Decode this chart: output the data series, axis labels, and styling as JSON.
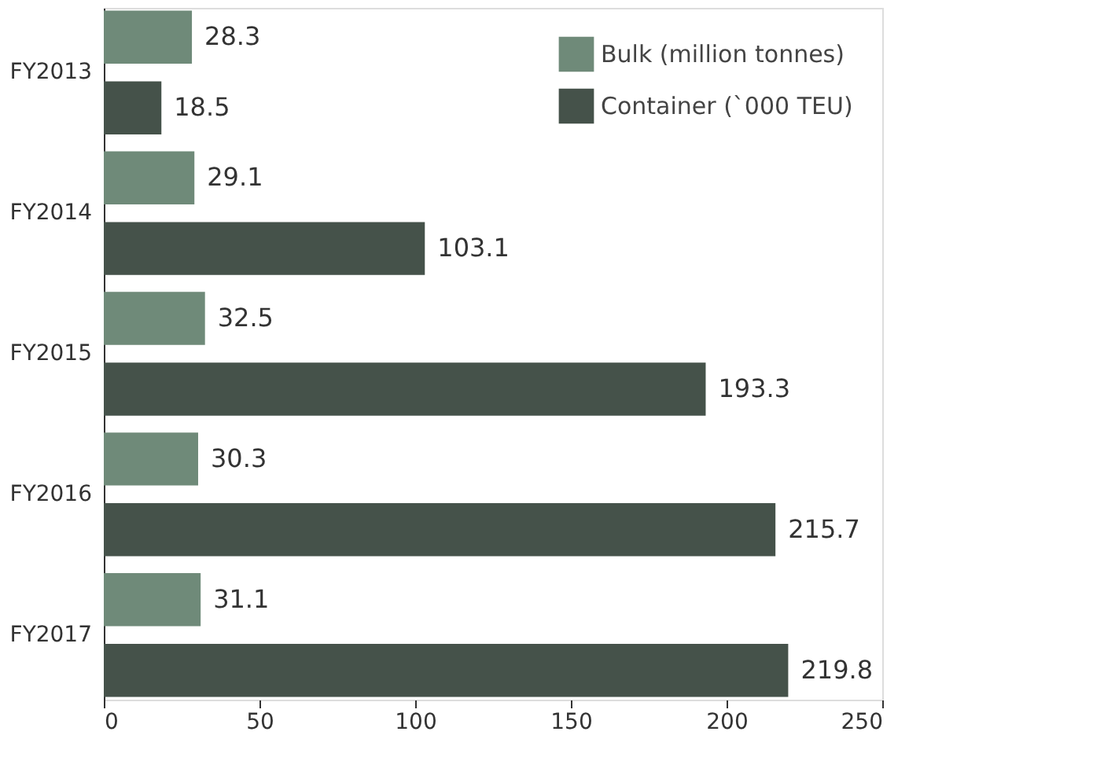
{
  "chart_data": {
    "type": "bar",
    "orientation": "horizontal",
    "categories": [
      "FY2013",
      "FY2014",
      "FY2015",
      "FY2016",
      "FY2017"
    ],
    "series": [
      {
        "name": "Bulk (million tonnes)",
        "color": "#6f8a79",
        "values": [
          28.3,
          29.1,
          32.5,
          30.3,
          31.1
        ]
      },
      {
        "name": "Container (`000 TEU)",
        "color": "#45524a",
        "values": [
          18.5,
          103.1,
          193.3,
          215.7,
          219.8
        ]
      }
    ],
    "xlim": [
      0,
      250
    ],
    "xticks": [
      0,
      50,
      100,
      150,
      200,
      250
    ],
    "data_labels": true,
    "grid": false,
    "legend": "top right"
  }
}
